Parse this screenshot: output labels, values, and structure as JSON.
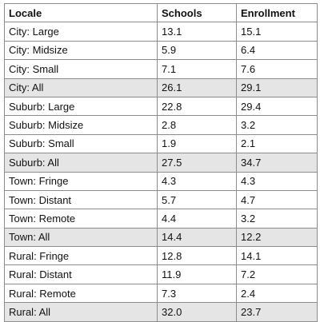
{
  "table": {
    "headers": [
      "Locale",
      "Schools",
      "Enrollment"
    ],
    "rows": [
      {
        "locale": "City: Large",
        "schools": "13.1",
        "enrollment": "15.1",
        "subtotal": false
      },
      {
        "locale": "City: Midsize",
        "schools": "5.9",
        "enrollment": "6.4",
        "subtotal": false
      },
      {
        "locale": "City: Small",
        "schools": "7.1",
        "enrollment": "7.6",
        "subtotal": false
      },
      {
        "locale": "City: All",
        "schools": "26.1",
        "enrollment": "29.1",
        "subtotal": true
      },
      {
        "locale": "Suburb: Large",
        "schools": "22.8",
        "enrollment": "29.4",
        "subtotal": false
      },
      {
        "locale": "Suburb: Midsize",
        "schools": "2.8",
        "enrollment": "3.2",
        "subtotal": false
      },
      {
        "locale": "Suburb: Small",
        "schools": "1.9",
        "enrollment": "2.1",
        "subtotal": false
      },
      {
        "locale": "Suburb: All",
        "schools": "27.5",
        "enrollment": "34.7",
        "subtotal": true
      },
      {
        "locale": "Town: Fringe",
        "schools": "4.3",
        "enrollment": "4.3",
        "subtotal": false
      },
      {
        "locale": "Town: Distant",
        "schools": "5.7",
        "enrollment": "4.7",
        "subtotal": false
      },
      {
        "locale": "Town: Remote",
        "schools": "4.4",
        "enrollment": "3.2",
        "subtotal": false
      },
      {
        "locale": "Town: All",
        "schools": "14.4",
        "enrollment": "12.2",
        "subtotal": true
      },
      {
        "locale": "Rural: Fringe",
        "schools": "12.8",
        "enrollment": "14.1",
        "subtotal": false
      },
      {
        "locale": "Rural: Distant",
        "schools": "11.9",
        "enrollment": "7.2",
        "subtotal": false
      },
      {
        "locale": "Rural: Remote",
        "schools": "7.3",
        "enrollment": "2.4",
        "subtotal": false
      },
      {
        "locale": "Rural: All",
        "schools": "32.0",
        "enrollment": "23.7",
        "subtotal": true
      }
    ],
    "colors": {
      "subtotal_row_bg": "#e5e5e5",
      "border": "#8c8c8c"
    }
  }
}
